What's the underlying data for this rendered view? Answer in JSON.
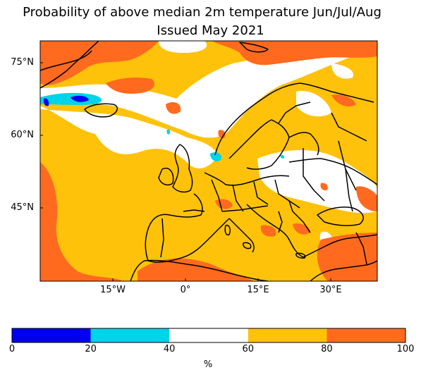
{
  "title_line1": "Probability of above median 2m temperature Jun/Jul/Aug",
  "title_line2": "Issued May 2021",
  "lat_ticks": [
    "75°N",
    "60°N",
    "45°N"
  ],
  "lon_ticks": [
    "15°W",
    "0°",
    "15°E",
    "30°E"
  ],
  "colorbar": {
    "bins": [
      {
        "from": 0,
        "to": 20,
        "color": "#0000ee"
      },
      {
        "from": 20,
        "to": 40,
        "color": "#00d4e8"
      },
      {
        "from": 40,
        "to": 60,
        "color": "#ffffff"
      },
      {
        "from": 60,
        "to": 80,
        "color": "#ffc20a"
      },
      {
        "from": 80,
        "to": 100,
        "color": "#ff6a1e"
      }
    ],
    "tick_labels": [
      "0",
      "20",
      "40",
      "60",
      "80",
      "100"
    ],
    "unit": "%"
  }
}
